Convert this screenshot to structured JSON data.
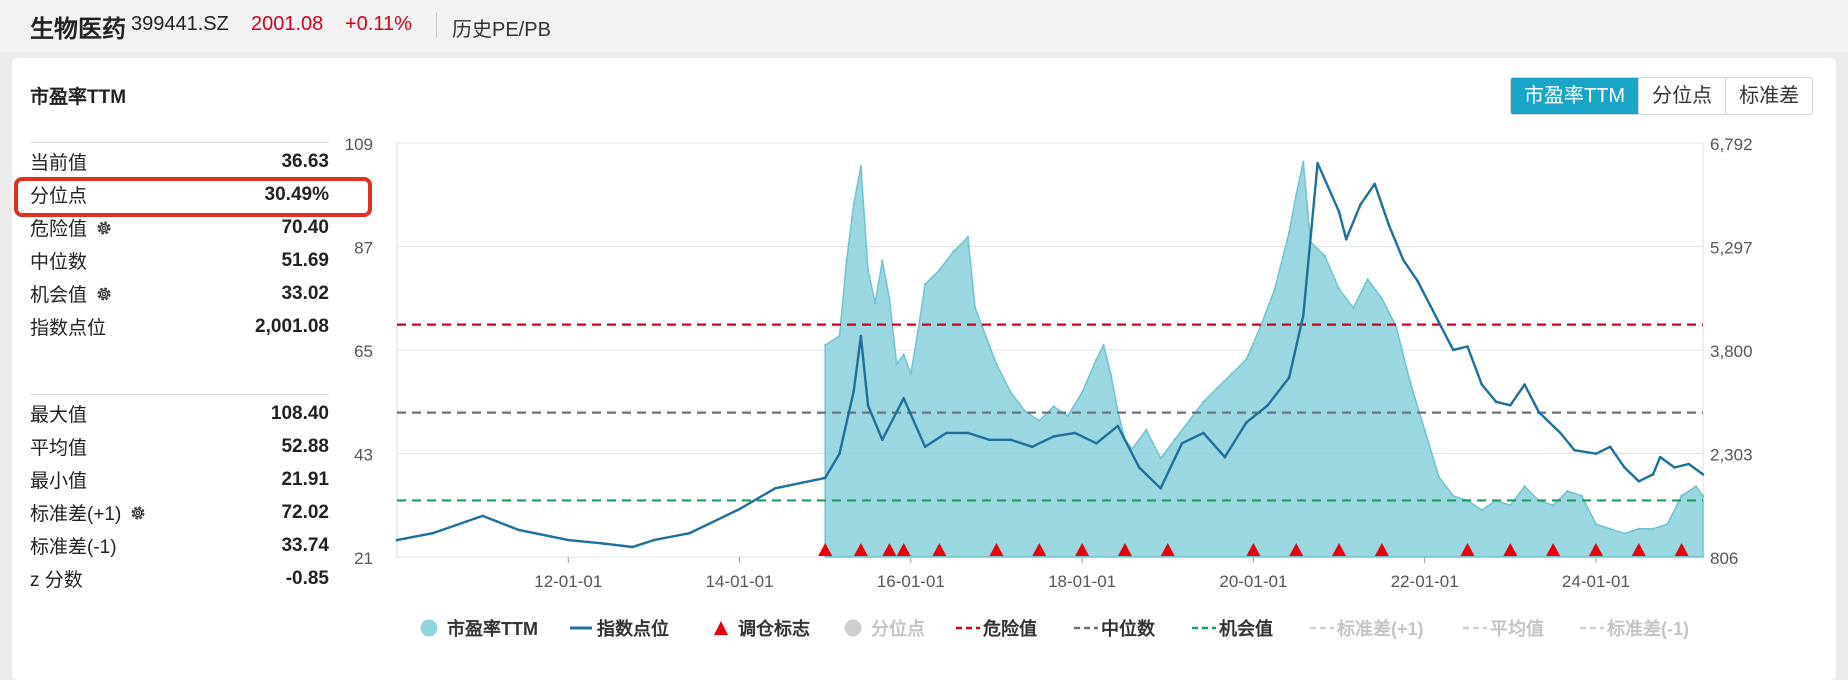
{
  "header": {
    "name": "生物医药",
    "code": "399441.SZ",
    "price": "2001.08",
    "change": "+0.11%",
    "history_link": "历史PE/PB"
  },
  "panel": {
    "title": "市盈率TTM",
    "tabs": [
      {
        "label": "市盈率TTM",
        "active": true
      },
      {
        "label": "分位点",
        "active": false
      },
      {
        "label": "标准差",
        "active": false
      }
    ]
  },
  "stats_top": [
    {
      "label": "当前值",
      "value": "36.63",
      "gear": false
    },
    {
      "label": "分位点",
      "value": "30.49%",
      "gear": false
    },
    {
      "label": "危险值",
      "value": "70.40",
      "gear": true
    },
    {
      "label": "中位数",
      "value": "51.69",
      "gear": false
    },
    {
      "label": "机会值",
      "value": "33.02",
      "gear": true
    },
    {
      "label": "指数点位",
      "value": "2,001.08",
      "gear": false
    }
  ],
  "stats_bottom": [
    {
      "label": "最大值",
      "value": "108.40",
      "gear": false
    },
    {
      "label": "平均值",
      "value": "52.88",
      "gear": false
    },
    {
      "label": "最小值",
      "value": "21.91",
      "gear": false
    },
    {
      "label": "标准差(+1)",
      "value": "72.02",
      "gear": true
    },
    {
      "label": "标准差(-1)",
      "value": "33.74",
      "gear": false
    },
    {
      "label": "z 分数",
      "value": "-0.85",
      "gear": false
    }
  ],
  "colors": {
    "pe_fill": "#8fd3dd",
    "pe_line": "#6fc3cf",
    "index_line": "#1f6f9c",
    "danger": "#d0021b",
    "median": "#6a7280",
    "opportunity": "#1d9c5a",
    "marker": "#e8000b",
    "active_tab": "#1aa5c8",
    "highlight": "#e0301e"
  },
  "chart_data": {
    "type": "area",
    "x_range": [
      "2010-01",
      "2025-04"
    ],
    "x_ticks": [
      "12-01-01",
      "14-01-01",
      "16-01-01",
      "18-01-01",
      "20-01-01",
      "22-01-01",
      "24-01-01"
    ],
    "y_left": {
      "min": 21,
      "max": 109,
      "ticks": [
        "21",
        "43",
        "65",
        "87",
        "109"
      ]
    },
    "y_right": {
      "min": 806,
      "max": 6792,
      "ticks": [
        "806",
        "2,303",
        "3,800",
        "5,297",
        "6,792"
      ]
    },
    "grid": true,
    "legend_position": "bottom",
    "ref_lines": [
      {
        "name": "危险值",
        "value": 70.4
      },
      {
        "name": "中位数",
        "value": 51.69
      },
      {
        "name": "机会值",
        "value": 33.02
      }
    ],
    "series": [
      {
        "name": "市盈率TTM",
        "axis": "left",
        "x": [
          "2015-01",
          "2015-03",
          "2015-04",
          "2015-05",
          "2015-06",
          "2015-07",
          "2015-08",
          "2015-09",
          "2015-10",
          "2015-11",
          "2015-12",
          "2016-01",
          "2016-02",
          "2016-03",
          "2016-05",
          "2016-07",
          "2016-09",
          "2016-10",
          "2016-11",
          "2016-12",
          "2017-01",
          "2017-03",
          "2017-05",
          "2017-07",
          "2017-09",
          "2017-11",
          "2018-01",
          "2018-03",
          "2018-04",
          "2018-05",
          "2018-06",
          "2018-07",
          "2018-08",
          "2018-10",
          "2018-12",
          "2019-02",
          "2019-04",
          "2019-06",
          "2019-08",
          "2019-10",
          "2019-12",
          "2020-02",
          "2020-04",
          "2020-06",
          "2020-07",
          "2020-08",
          "2020-09",
          "2020-11",
          "2021-01",
          "2021-03",
          "2021-05",
          "2021-07",
          "2021-09",
          "2021-11",
          "2022-01",
          "2022-03",
          "2022-05",
          "2022-07",
          "2022-09",
          "2022-11",
          "2023-01",
          "2023-03",
          "2023-05",
          "2023-07",
          "2023-09",
          "2023-11",
          "2024-01",
          "2024-03",
          "2024-05",
          "2024-07",
          "2024-09",
          "2024-11",
          "2025-01",
          "2025-03",
          "2025-04"
        ],
        "values": [
          66,
          68,
          84,
          96,
          104,
          82,
          75,
          84,
          76,
          62,
          64,
          60,
          69,
          79,
          82,
          86,
          89,
          74,
          70,
          66,
          62,
          56,
          52,
          50,
          53,
          51,
          56,
          63,
          66,
          60,
          52,
          46,
          44,
          48,
          42,
          46,
          50,
          54,
          57,
          60,
          63,
          70,
          78,
          90,
          98,
          105,
          88,
          85,
          78,
          74,
          80,
          76,
          70,
          58,
          48,
          38,
          34,
          33,
          31,
          33,
          32,
          36,
          33,
          32,
          35,
          34,
          28,
          27,
          26,
          27,
          27,
          28,
          34,
          36,
          34
        ]
      },
      {
        "name": "指数点位",
        "axis": "right",
        "x": [
          "2010-01",
          "2010-06",
          "2011-01",
          "2011-06",
          "2012-01",
          "2012-06",
          "2012-10",
          "2013-01",
          "2013-06",
          "2014-01",
          "2014-06",
          "2015-01",
          "2015-03",
          "2015-05",
          "2015-06",
          "2015-07",
          "2015-09",
          "2015-12",
          "2016-03",
          "2016-06",
          "2016-09",
          "2016-12",
          "2017-03",
          "2017-06",
          "2017-09",
          "2017-12",
          "2018-03",
          "2018-06",
          "2018-09",
          "2018-12",
          "2019-03",
          "2019-06",
          "2019-09",
          "2019-12",
          "2020-03",
          "2020-06",
          "2020-08",
          "2020-10",
          "2021-01",
          "2021-02",
          "2021-04",
          "2021-06",
          "2021-08",
          "2021-10",
          "2021-12",
          "2022-03",
          "2022-05",
          "2022-07",
          "2022-09",
          "2022-11",
          "2023-01",
          "2023-03",
          "2023-05",
          "2023-08",
          "2023-10",
          "2024-01",
          "2024-03",
          "2024-05",
          "2024-07",
          "2024-09",
          "2024-10",
          "2024-12",
          "2025-02",
          "2025-04"
        ],
        "values": [
          1050,
          1150,
          1400,
          1200,
          1050,
          1000,
          950,
          1050,
          1150,
          1500,
          1800,
          1950,
          2300,
          3200,
          4000,
          3000,
          2500,
          3100,
          2400,
          2600,
          2600,
          2500,
          2500,
          2400,
          2550,
          2600,
          2450,
          2700,
          2100,
          1800,
          2450,
          2600,
          2250,
          2750,
          3000,
          3400,
          4300,
          6500,
          5800,
          5400,
          5900,
          6200,
          5600,
          5100,
          4800,
          4200,
          3800,
          3850,
          3300,
          3050,
          3000,
          3300,
          2900,
          2600,
          2350,
          2300,
          2400,
          2100,
          1900,
          2000,
          2250,
          2100,
          2150,
          2000
        ]
      },
      {
        "name": "调仓标志",
        "axis": "marker",
        "x": [
          "2015-01",
          "2015-06",
          "2015-10",
          "2015-12",
          "2016-05",
          "2017-01",
          "2017-07",
          "2018-01",
          "2018-07",
          "2019-01",
          "2020-01",
          "2020-07",
          "2021-01",
          "2021-07",
          "2022-07",
          "2023-01",
          "2023-07",
          "2024-01",
          "2024-07",
          "2025-01"
        ]
      }
    ],
    "legend": [
      "市盈率TTM",
      "指数点位",
      "调仓标志",
      "分位点",
      "危险值",
      "中位数",
      "机会值",
      "标准差(+1)",
      "平均值",
      "标准差(-1)"
    ]
  }
}
